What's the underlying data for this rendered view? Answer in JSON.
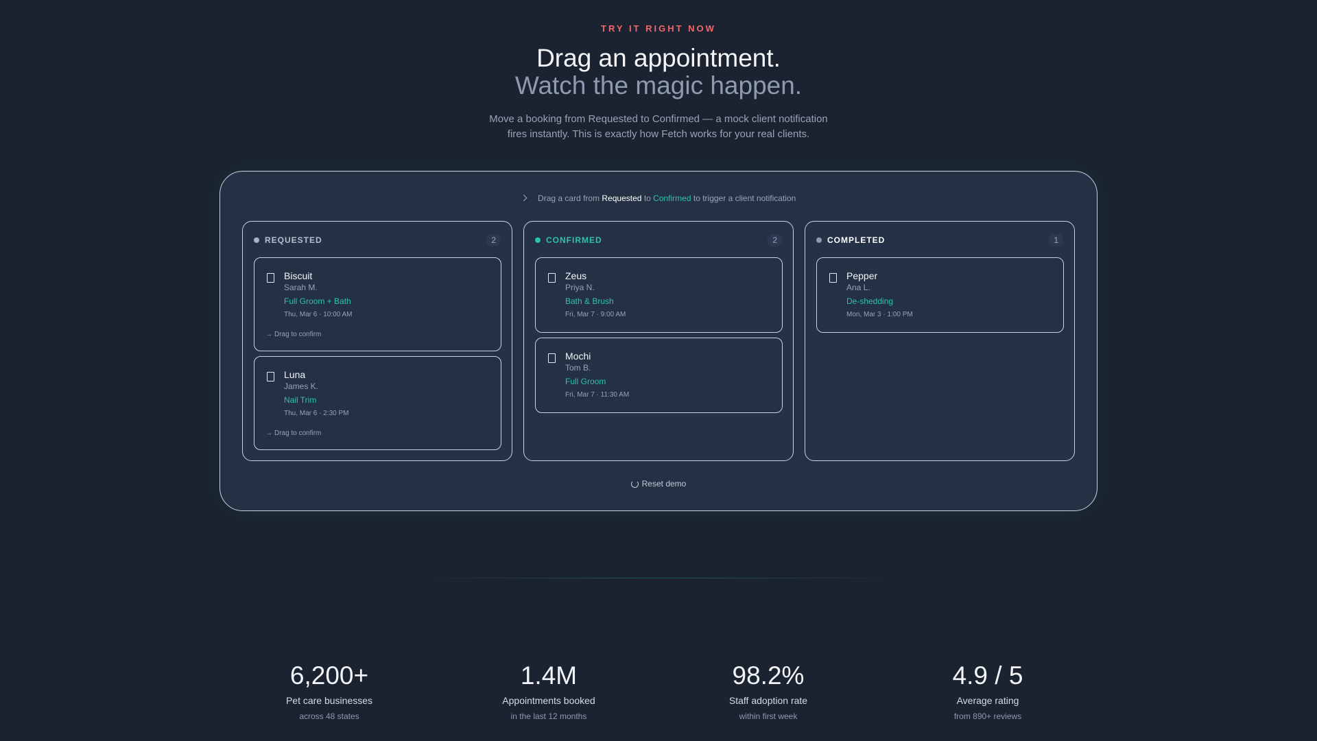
{
  "hero": {
    "eyebrow": "TRY IT RIGHT NOW",
    "title_line1": "Drag an appointment.",
    "title_line2": "Watch the magic happen.",
    "description": "Move a booking from Requested to Confirmed — a mock client notification fires instantly. This is exactly how Fetch works for your real clients."
  },
  "hint": {
    "prefix": "Drag a card from",
    "from": "Requested",
    "middle": "to",
    "to": "Confirmed",
    "suffix": "to trigger a client notification",
    "icon": "chevron-right-icon"
  },
  "columns": [
    {
      "title": "REQUESTED",
      "count": "2",
      "dot_color": "#a8b2c1",
      "title_color": "#b7c0cd",
      "cards": [
        {
          "pet": "Biscuit",
          "owner": "Sarah M.",
          "service": "Full Groom + Bath",
          "when": "Thu, Mar 6 · 10:00 AM",
          "drag": "Drag to confirm"
        },
        {
          "pet": "Luna",
          "owner": "James K.",
          "service": "Nail Trim",
          "when": "Thu, Mar 6 · 2:30 PM",
          "drag": "Drag to confirm"
        }
      ]
    },
    {
      "title": "CONFIRMED",
      "count": "2",
      "dot_color": "#2ec4a6",
      "title_color": "#2ec4a6",
      "cards": [
        {
          "pet": "Zeus",
          "owner": "Priya N.",
          "service": "Bath & Brush",
          "when": "Fri, Mar 7 · 9:00 AM"
        },
        {
          "pet": "Mochi",
          "owner": "Tom B.",
          "service": "Full Groom",
          "when": "Fri, Mar 7 · 11:30 AM"
        }
      ]
    },
    {
      "title": "COMPLETED",
      "count": "1",
      "dot_color": "#8e9ab0",
      "title_color": "#ffffff",
      "cards": [
        {
          "pet": "Pepper",
          "owner": "Ana L.",
          "service": "De-shedding",
          "when": "Mon, Mar 3 · 1:00 PM"
        }
      ]
    }
  ],
  "reset_label": "Reset demo",
  "stats": [
    {
      "value": "6,200+",
      "label": "Pet care businesses",
      "sub": "across 48 states"
    },
    {
      "value": "1.4M",
      "label": "Appointments booked",
      "sub": "in the last 12 months"
    },
    {
      "value": "98.2%",
      "label": "Staff adoption rate",
      "sub": "within first week"
    },
    {
      "value": "4.9 / 5",
      "label": "Average rating",
      "sub": "from 890+ reviews"
    }
  ]
}
